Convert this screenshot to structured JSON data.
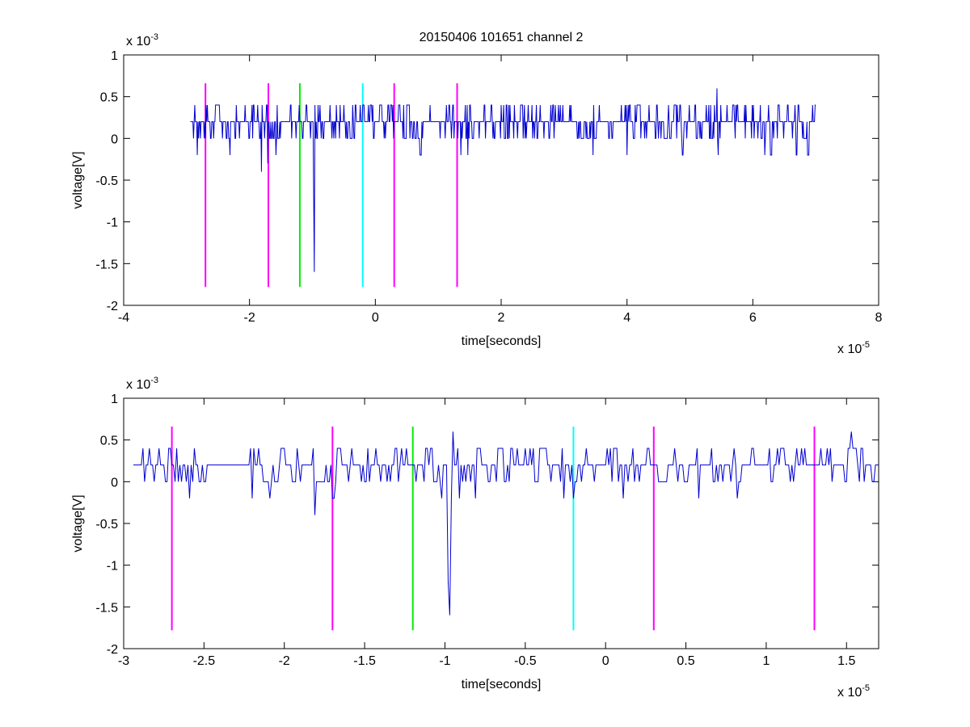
{
  "figure": {
    "title": "20150406 101651 channel 2"
  },
  "colors": {
    "signal": "#0000d0",
    "magenta": "#ff00ff",
    "green": "#00ee00",
    "cyan": "#00ffff",
    "axes": "#000000"
  },
  "chart_data": [
    {
      "type": "line",
      "title": "20150406 101651 channel 2",
      "xlabel": "time[seconds]",
      "ylabel": "voltage[V]",
      "x_multiplier_label": "x 10",
      "x_multiplier_exp": "-5",
      "y_multiplier_label": "x 10",
      "y_multiplier_exp": "-3",
      "xlim": [
        -4e-05,
        8e-05
      ],
      "ylim": [
        -0.002,
        0.001
      ],
      "xticks": [
        -4,
        -2,
        0,
        2,
        4,
        6,
        8
      ],
      "xtick_labels": [
        "-4",
        "-2",
        "0",
        "2",
        "4",
        "6",
        "8"
      ],
      "yticks": [
        -2,
        -1.5,
        -1,
        -0.5,
        0,
        0.5,
        1
      ],
      "ytick_labels": [
        "-2",
        "-1.5",
        "-1",
        "-0.5",
        "0",
        "0.5",
        "1"
      ],
      "grid": false,
      "signal": {
        "x_start": -2.94e-05,
        "x_end": 7e-05,
        "baseline": 0.0002,
        "spikes": [
          {
            "x": -1.81e-05,
            "y": -0.0004
          },
          {
            "x": -1.71e-05,
            "y": -0.0003
          },
          {
            "x": -9.85e-06,
            "y": -0.0007
          },
          {
            "x": -9.7e-06,
            "y": -0.0016
          },
          {
            "x": 5.43e-05,
            "y": 0.0006
          }
        ]
      },
      "markers": [
        {
          "x": -2.7e-05,
          "color": "magenta",
          "y_top": 0.00066,
          "y_bottom": -0.00178
        },
        {
          "x": -1.7e-05,
          "color": "magenta",
          "y_top": 0.00066,
          "y_bottom": -0.00178
        },
        {
          "x": -1.2e-05,
          "color": "green",
          "y_top": 0.00066,
          "y_bottom": -0.00178
        },
        {
          "x": -2e-06,
          "color": "cyan",
          "y_top": 0.00066,
          "y_bottom": -0.00178
        },
        {
          "x": 3e-06,
          "color": "magenta",
          "y_top": 0.00066,
          "y_bottom": -0.00178
        },
        {
          "x": 1.3e-05,
          "color": "magenta",
          "y_top": 0.00066,
          "y_bottom": -0.00178
        }
      ]
    },
    {
      "type": "line",
      "title": "",
      "xlabel": "time[seconds]",
      "ylabel": "voltage[V]",
      "x_multiplier_label": "x 10",
      "x_multiplier_exp": "-5",
      "y_multiplier_label": "x 10",
      "y_multiplier_exp": "-3",
      "xlim": [
        -3e-05,
        1.7e-05
      ],
      "ylim": [
        -0.002,
        0.001
      ],
      "xticks": [
        -3,
        -2.5,
        -2,
        -1.5,
        -1,
        -0.5,
        0,
        0.5,
        1,
        1.5
      ],
      "xtick_labels": [
        "-3",
        "-2.5",
        "-2",
        "-1.5",
        "-1",
        "-0.5",
        "0",
        "0.5",
        "1",
        "1.5"
      ],
      "yticks": [
        -2,
        -1.5,
        -1,
        -0.5,
        0,
        0.5,
        1
      ],
      "ytick_labels": [
        "-2",
        "-1.5",
        "-1",
        "-0.5",
        "0",
        "0.5",
        "1"
      ],
      "grid": false,
      "signal": {
        "x_start": -2.94e-05,
        "x_end": 1.7e-05,
        "baseline": 0.0002,
        "spikes": [
          {
            "x": -2.2e-05,
            "y": -0.0002
          },
          {
            "x": -1.81e-05,
            "y": -0.0004
          },
          {
            "x": -1.7e-05,
            "y": -0.0002
          },
          {
            "x": -9.85e-06,
            "y": -0.0012
          },
          {
            "x": -9.75e-06,
            "y": -0.0016
          },
          {
            "x": -9.5e-06,
            "y": 0.0006
          },
          {
            "x": 5.8e-06,
            "y": -0.0002
          },
          {
            "x": 1.53e-05,
            "y": 0.0006
          }
        ]
      },
      "markers": [
        {
          "x": -2.7e-05,
          "color": "magenta",
          "y_top": 0.00066,
          "y_bottom": -0.00178
        },
        {
          "x": -1.7e-05,
          "color": "magenta",
          "y_top": 0.00066,
          "y_bottom": -0.00178
        },
        {
          "x": -1.2e-05,
          "color": "green",
          "y_top": 0.00066,
          "y_bottom": -0.00178
        },
        {
          "x": -2e-06,
          "color": "cyan",
          "y_top": 0.00066,
          "y_bottom": -0.00178
        },
        {
          "x": 3e-06,
          "color": "magenta",
          "y_top": 0.00066,
          "y_bottom": -0.00178
        },
        {
          "x": 1.3e-05,
          "color": "magenta",
          "y_top": 0.00066,
          "y_bottom": -0.00178
        }
      ]
    }
  ]
}
